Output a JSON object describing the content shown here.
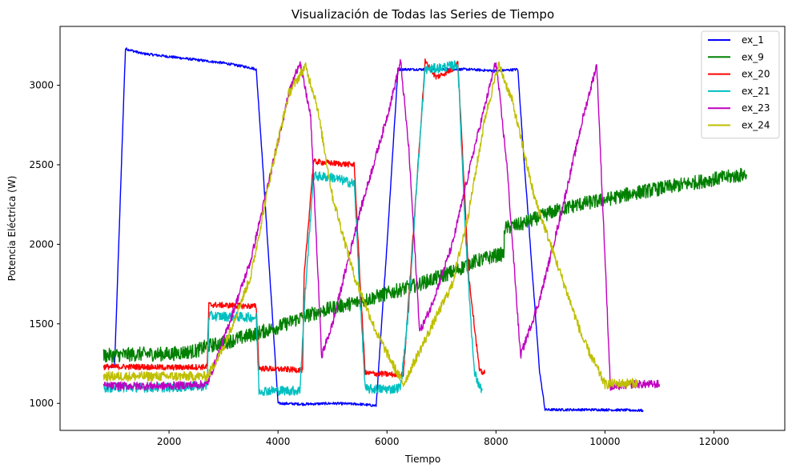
{
  "chart_data": {
    "type": "line",
    "title": "Visualización de Todas las Series de Tiempo",
    "xlabel": "Tiempo",
    "ylabel": "Potencia Eléctrica (W)",
    "xlim": [
      0,
      13300
    ],
    "ylim": [
      830,
      3370
    ],
    "xticks": [
      "2000",
      "4000",
      "6000",
      "8000",
      "10000",
      "12000"
    ],
    "xtick_values": [
      2000,
      4000,
      6000,
      8000,
      10000,
      12000
    ],
    "yticks": [
      "1000",
      "1500",
      "2000",
      "2500",
      "3000"
    ],
    "ytick_values": [
      1000,
      1500,
      2000,
      2500,
      3000
    ],
    "grid": false,
    "legend_position": "top-right",
    "series": [
      {
        "name": "ex_1",
        "color": "#0000ff",
        "noise": 8,
        "points": [
          [
            800,
            1230
          ],
          [
            1000,
            1230
          ],
          [
            1200,
            3230
          ],
          [
            1500,
            3200
          ],
          [
            2000,
            3180
          ],
          [
            2500,
            3160
          ],
          [
            3000,
            3140
          ],
          [
            3500,
            3110
          ],
          [
            3600,
            3100
          ],
          [
            3700,
            2600
          ],
          [
            4000,
            1000
          ],
          [
            4500,
            995
          ],
          [
            5000,
            1000
          ],
          [
            5500,
            995
          ],
          [
            5800,
            985
          ],
          [
            6000,
            2000
          ],
          [
            6200,
            3100
          ],
          [
            7000,
            3100
          ],
          [
            7500,
            3100
          ],
          [
            8000,
            3090
          ],
          [
            8400,
            3100
          ],
          [
            8500,
            2600
          ],
          [
            8800,
            1200
          ],
          [
            8900,
            960
          ],
          [
            9500,
            960
          ],
          [
            10000,
            960
          ],
          [
            10700,
            955
          ]
        ]
      },
      {
        "name": "ex_9",
        "color": "#008000",
        "noise": 45,
        "points": [
          [
            800,
            1300
          ],
          [
            1500,
            1310
          ],
          [
            2000,
            1310
          ],
          [
            2500,
            1330
          ],
          [
            2700,
            1360
          ],
          [
            3000,
            1380
          ],
          [
            3500,
            1430
          ],
          [
            4000,
            1480
          ],
          [
            4500,
            1550
          ],
          [
            5000,
            1600
          ],
          [
            5500,
            1640
          ],
          [
            6000,
            1690
          ],
          [
            6500,
            1740
          ],
          [
            7000,
            1800
          ],
          [
            7300,
            1840
          ],
          [
            7500,
            1880
          ],
          [
            8000,
            1930
          ],
          [
            8150,
            1940
          ],
          [
            8150,
            2100
          ],
          [
            8500,
            2130
          ],
          [
            9000,
            2200
          ],
          [
            9500,
            2250
          ],
          [
            10000,
            2280
          ],
          [
            10500,
            2320
          ],
          [
            11000,
            2350
          ],
          [
            11500,
            2380
          ],
          [
            12000,
            2410
          ],
          [
            12600,
            2440
          ]
        ]
      },
      {
        "name": "ex_20",
        "color": "#ff0000",
        "noise": 18,
        "points": [
          [
            800,
            1230
          ],
          [
            1500,
            1230
          ],
          [
            2000,
            1225
          ],
          [
            2700,
            1230
          ],
          [
            2730,
            1620
          ],
          [
            3600,
            1610
          ],
          [
            3650,
            1220
          ],
          [
            4450,
            1210
          ],
          [
            4480,
            1800
          ],
          [
            4650,
            2520
          ],
          [
            5000,
            2510
          ],
          [
            5400,
            2500
          ],
          [
            5500,
            1800
          ],
          [
            5600,
            1190
          ],
          [
            6200,
            1180
          ],
          [
            6300,
            1180
          ],
          [
            6550,
            2400
          ],
          [
            6700,
            3150
          ],
          [
            6900,
            3050
          ],
          [
            7200,
            3100
          ],
          [
            7300,
            3150
          ],
          [
            7500,
            1800
          ],
          [
            7700,
            1200
          ],
          [
            7800,
            1190
          ]
        ]
      },
      {
        "name": "ex_21",
        "color": "#00c0c0",
        "noise": 30,
        "points": [
          [
            800,
            1100
          ],
          [
            1500,
            1100
          ],
          [
            2000,
            1100
          ],
          [
            2700,
            1110
          ],
          [
            2730,
            1550
          ],
          [
            3600,
            1540
          ],
          [
            3650,
            1080
          ],
          [
            4400,
            1080
          ],
          [
            4500,
            1700
          ],
          [
            4650,
            2430
          ],
          [
            5000,
            2420
          ],
          [
            5400,
            2380
          ],
          [
            5500,
            1700
          ],
          [
            5600,
            1090
          ],
          [
            6100,
            1090
          ],
          [
            6250,
            1100
          ],
          [
            6400,
            1600
          ],
          [
            6550,
            2400
          ],
          [
            6700,
            3100
          ],
          [
            7000,
            3110
          ],
          [
            7300,
            3130
          ],
          [
            7450,
            2000
          ],
          [
            7600,
            1200
          ],
          [
            7700,
            1100
          ],
          [
            7750,
            1090
          ]
        ]
      },
      {
        "name": "ex_23",
        "color": "#c000c0",
        "noise": 25,
        "points": [
          [
            800,
            1110
          ],
          [
            1500,
            1110
          ],
          [
            2000,
            1110
          ],
          [
            2700,
            1120
          ],
          [
            3000,
            1400
          ],
          [
            3500,
            1900
          ],
          [
            3900,
            2500
          ],
          [
            4200,
            2950
          ],
          [
            4400,
            3150
          ],
          [
            4600,
            2800
          ],
          [
            4800,
            1300
          ],
          [
            5000,
            1500
          ],
          [
            5500,
            2200
          ],
          [
            6000,
            2800
          ],
          [
            6250,
            3150
          ],
          [
            6400,
            2600
          ],
          [
            6600,
            1450
          ],
          [
            6800,
            1600
          ],
          [
            7200,
            2000
          ],
          [
            7600,
            2600
          ],
          [
            8000,
            3150
          ],
          [
            8200,
            2500
          ],
          [
            8450,
            1300
          ],
          [
            8800,
            1650
          ],
          [
            9200,
            2200
          ],
          [
            9600,
            2800
          ],
          [
            9850,
            3130
          ],
          [
            10100,
            1100
          ],
          [
            10500,
            1120
          ],
          [
            11000,
            1120
          ]
        ]
      },
      {
        "name": "ex_24",
        "color": "#bfbf00",
        "noise": 30,
        "points": [
          [
            800,
            1170
          ],
          [
            1500,
            1170
          ],
          [
            2000,
            1170
          ],
          [
            2700,
            1170
          ],
          [
            3000,
            1350
          ],
          [
            3500,
            1800
          ],
          [
            3900,
            2500
          ],
          [
            4200,
            2950
          ],
          [
            4500,
            3120
          ],
          [
            4700,
            2900
          ],
          [
            5000,
            2300
          ],
          [
            5400,
            1800
          ],
          [
            5800,
            1450
          ],
          [
            6100,
            1250
          ],
          [
            6300,
            1120
          ],
          [
            6700,
            1400
          ],
          [
            7200,
            1750
          ],
          [
            7500,
            2200
          ],
          [
            7800,
            2800
          ],
          [
            8050,
            3130
          ],
          [
            8300,
            2900
          ],
          [
            8700,
            2300
          ],
          [
            9200,
            1800
          ],
          [
            9600,
            1400
          ],
          [
            10000,
            1120
          ],
          [
            10600,
            1130
          ]
        ]
      }
    ]
  }
}
